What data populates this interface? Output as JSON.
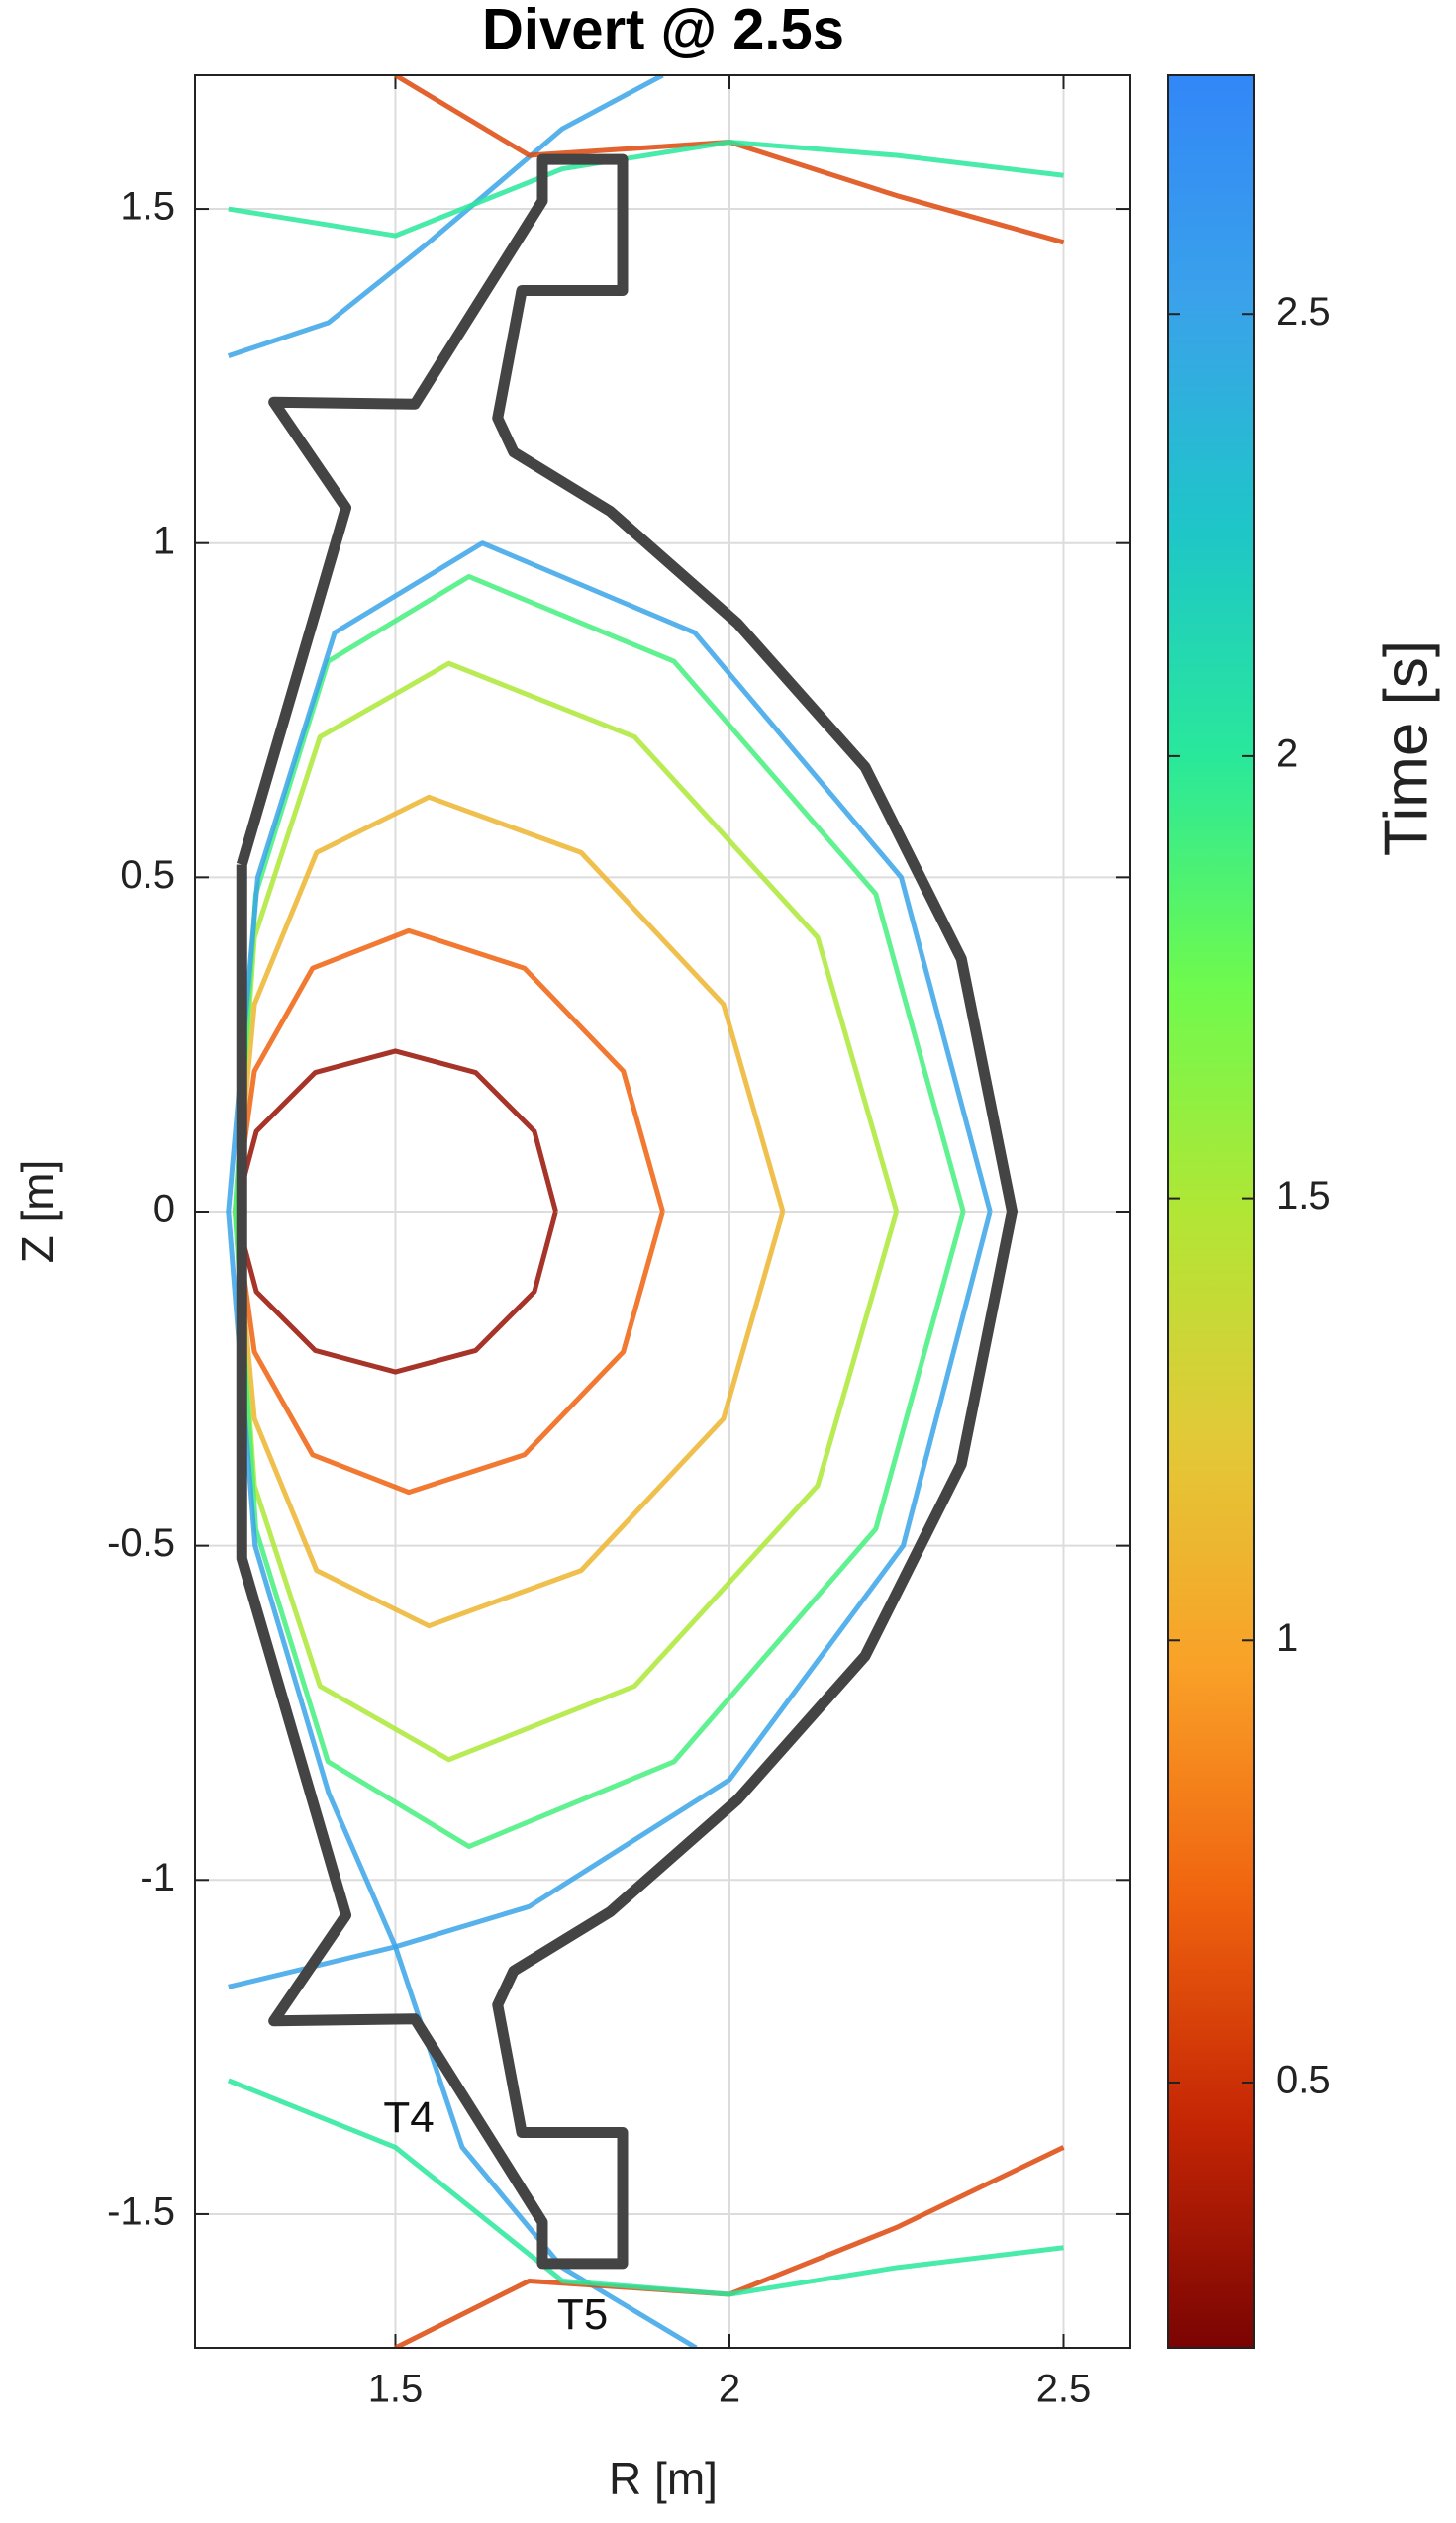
{
  "chart_data": {
    "type": "contour",
    "title": "Divert @ 2.5s",
    "xlabel": "R [m]",
    "ylabel": "Z [m]",
    "xlim": [
      1.2,
      2.6
    ],
    "ylim": [
      -1.7,
      1.7
    ],
    "xticks": [
      1.5,
      2,
      2.5
    ],
    "yticks": [
      -1.5,
      -1,
      -0.5,
      0,
      0.5,
      1,
      1.5
    ],
    "grid": true,
    "clabel": "Time [s]",
    "clim": [
      0.2,
      2.77
    ],
    "cticks": [
      0.5,
      1,
      1.5,
      2,
      2.5
    ],
    "colormap": [
      "#7a0403",
      "#c52604",
      "#f0640f",
      "#f9a128",
      "#e2c937",
      "#b1e635",
      "#6efa4e",
      "#29e89b",
      "#1ec6c8",
      "#3aa2ea",
      "#3287f7"
    ],
    "wall_color": "#444444",
    "wall": {
      "r": [
        1.27,
        1.426,
        1.318,
        1.529,
        1.72,
        1.72,
        1.84,
        1.84,
        1.689,
        1.653,
        1.677,
        1.821,
        2.012,
        2.203,
        2.347,
        2.423,
        2.347,
        2.203,
        2.012,
        1.821,
        1.677,
        1.653,
        1.689,
        1.84,
        1.84,
        1.72,
        1.72,
        1.529,
        1.318,
        1.426,
        1.27,
        1.27
      ],
      "z": [
        0.519,
        1.053,
        1.211,
        1.208,
        1.512,
        1.574,
        1.574,
        1.378,
        1.378,
        1.187,
        1.136,
        1.048,
        0.88,
        0.665,
        0.378,
        0,
        -0.378,
        -0.665,
        -0.88,
        -1.048,
        -1.136,
        -1.187,
        -1.378,
        -1.378,
        -1.574,
        -1.574,
        -1.512,
        -1.208,
        -1.211,
        -1.053,
        -0.519,
        0.519
      ]
    },
    "contours": [
      {
        "time": 0.3,
        "r": [
          1.74,
          1.708,
          1.62,
          1.5,
          1.38,
          1.292,
          1.26,
          1.292,
          1.38,
          1.5,
          1.62,
          1.708,
          1.74
        ],
        "z": [
          0,
          0.12,
          0.208,
          0.24,
          0.208,
          0.12,
          0,
          -0.12,
          -0.208,
          -0.24,
          -0.208,
          -0.12,
          0
        ]
      },
      {
        "time": 0.7,
        "r": [
          1.9,
          1.841,
          1.693,
          1.52,
          1.376,
          1.289,
          1.26,
          1.289,
          1.376,
          1.52,
          1.693,
          1.841,
          1.9
        ],
        "z": [
          0,
          0.21,
          0.364,
          0.42,
          0.364,
          0.21,
          0,
          -0.21,
          -0.364,
          -0.42,
          -0.364,
          -0.21,
          0
        ]
      },
      {
        "time": 1.1,
        "r": [
          2.08,
          1.991,
          1.778,
          1.55,
          1.382,
          1.289,
          1.26,
          1.289,
          1.382,
          1.55,
          1.778,
          1.991,
          2.08
        ],
        "z": [
          0,
          0.31,
          0.537,
          0.62,
          0.537,
          0.31,
          0,
          -0.31,
          -0.537,
          -0.62,
          -0.537,
          -0.31,
          0
        ]
      },
      {
        "time": 1.5,
        "r": [
          2.25,
          2.132,
          1.858,
          1.58,
          1.387,
          1.289,
          1.26,
          1.289,
          1.387,
          1.58,
          1.858,
          2.132,
          2.25
        ],
        "z": [
          0,
          0.41,
          0.71,
          0.82,
          0.71,
          0.41,
          0,
          -0.41,
          -0.71,
          -0.82,
          -0.71,
          -0.41,
          0
        ]
      },
      {
        "time": 1.9,
        "r": [
          2.35,
          2.219,
          1.917,
          1.61,
          1.399,
          1.291,
          1.26,
          1.291,
          1.399,
          1.61,
          1.917,
          2.219,
          2.35
        ],
        "z": [
          0,
          0.475,
          0.823,
          0.95,
          0.823,
          0.475,
          0,
          -0.475,
          -0.823,
          -0.95,
          -0.823,
          -0.475,
          0
        ]
      },
      {
        "time": 2.5,
        "r": [
          2.39,
          2.257,
          1.948,
          1.63,
          1.409,
          1.294,
          1.25,
          1.29,
          1.4,
          1.5,
          1.7,
          2.0,
          2.26,
          2.39
        ],
        "z": [
          0,
          0.5,
          0.866,
          1.0,
          0.866,
          0.5,
          0,
          -0.5,
          -0.87,
          -1.1,
          -1.04,
          -0.85,
          -0.5,
          0
        ]
      },
      {
        "time": 2.5,
        "r": [
          1.25,
          1.5,
          1.6,
          1.75,
          1.95
        ],
        "z": [
          -1.16,
          -1.1,
          -1.4,
          -1.58,
          -1.7
        ]
      },
      {
        "time": 2.5,
        "r": [
          1.25,
          1.4,
          1.55,
          1.75,
          1.9
        ],
        "z": [
          1.28,
          1.33,
          1.45,
          1.62,
          1.7
        ]
      },
      {
        "time": 0.6,
        "r": [
          1.5,
          1.7,
          2.0,
          2.25,
          2.5
        ],
        "z": [
          1.7,
          1.58,
          1.6,
          1.52,
          1.45
        ]
      },
      {
        "time": 0.6,
        "r": [
          1.5,
          1.7,
          2.0,
          2.25,
          2.5
        ],
        "z": [
          -1.7,
          -1.6,
          -1.62,
          -1.52,
          -1.4
        ]
      },
      {
        "time": 2.0,
        "r": [
          1.25,
          1.5,
          1.75,
          2.0,
          2.25,
          2.5
        ],
        "z": [
          1.5,
          1.46,
          1.56,
          1.6,
          1.58,
          1.55
        ]
      },
      {
        "time": 2.0,
        "r": [
          1.25,
          1.5,
          1.75,
          2.0,
          2.25,
          2.5
        ],
        "z": [
          -1.3,
          -1.4,
          -1.6,
          -1.62,
          -1.58,
          -1.55
        ]
      }
    ],
    "annotations": [
      {
        "text": "T4",
        "x": 1.52,
        "y": -1.36
      },
      {
        "text": "T5",
        "x": 1.78,
        "y": -1.655
      }
    ]
  }
}
